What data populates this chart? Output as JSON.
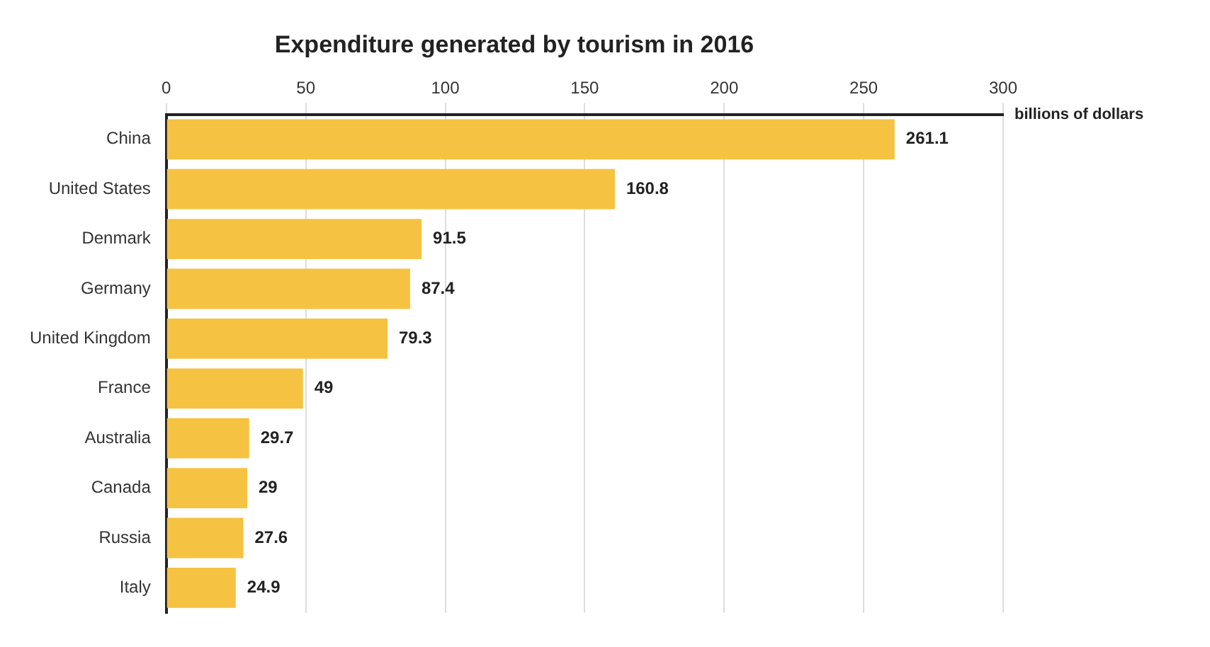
{
  "chart_data": {
    "type": "bar",
    "orientation": "horizontal",
    "title": "Expenditure generated by tourism in 2016",
    "xlabel": "billions of dollars",
    "categories": [
      "China",
      "United States",
      "Denmark",
      "Germany",
      "United Kingdom",
      "France",
      "Australia",
      "Canada",
      "Russia",
      "Italy"
    ],
    "values": [
      261.1,
      160.8,
      91.5,
      87.4,
      79.3,
      49,
      29.7,
      29,
      27.6,
      24.9
    ],
    "color": "#f5c242",
    "xlim": [
      0,
      300
    ],
    "xticks": [
      0,
      50,
      100,
      150,
      200,
      250,
      300
    ],
    "grid": "x",
    "data_labels": true
  }
}
